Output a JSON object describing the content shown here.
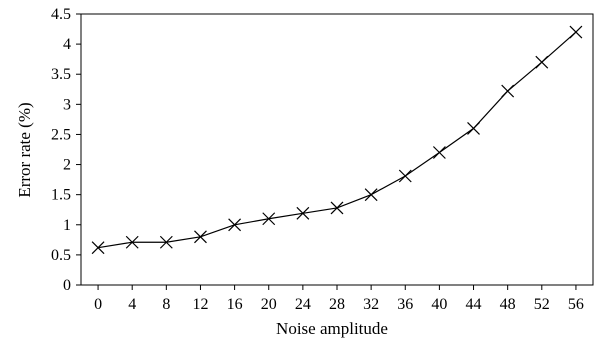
{
  "chart_data": {
    "type": "line",
    "title": "",
    "xlabel": "Noise amplitude",
    "ylabel": "Error rate (%)",
    "x_ticks": [
      0,
      4,
      8,
      12,
      16,
      20,
      24,
      28,
      32,
      36,
      40,
      44,
      48,
      52,
      56
    ],
    "y_ticks": [
      "0",
      "0.5",
      "1",
      "1.5",
      "2",
      "2.5",
      "3",
      "3.5",
      "4",
      "4.5"
    ],
    "xlim": [
      -2,
      58
    ],
    "ylim": [
      0,
      4.5
    ],
    "grid": false,
    "marker": "x",
    "series": [
      {
        "x": [
          0,
          4,
          8,
          12,
          16,
          20,
          24,
          28,
          32,
          36,
          40,
          44,
          48,
          52,
          56
        ],
        "values": [
          0.62,
          0.71,
          0.71,
          0.8,
          1.0,
          1.1,
          1.19,
          1.28,
          1.5,
          1.81,
          2.2,
          2.6,
          3.22,
          3.7,
          4.2
        ]
      }
    ]
  }
}
